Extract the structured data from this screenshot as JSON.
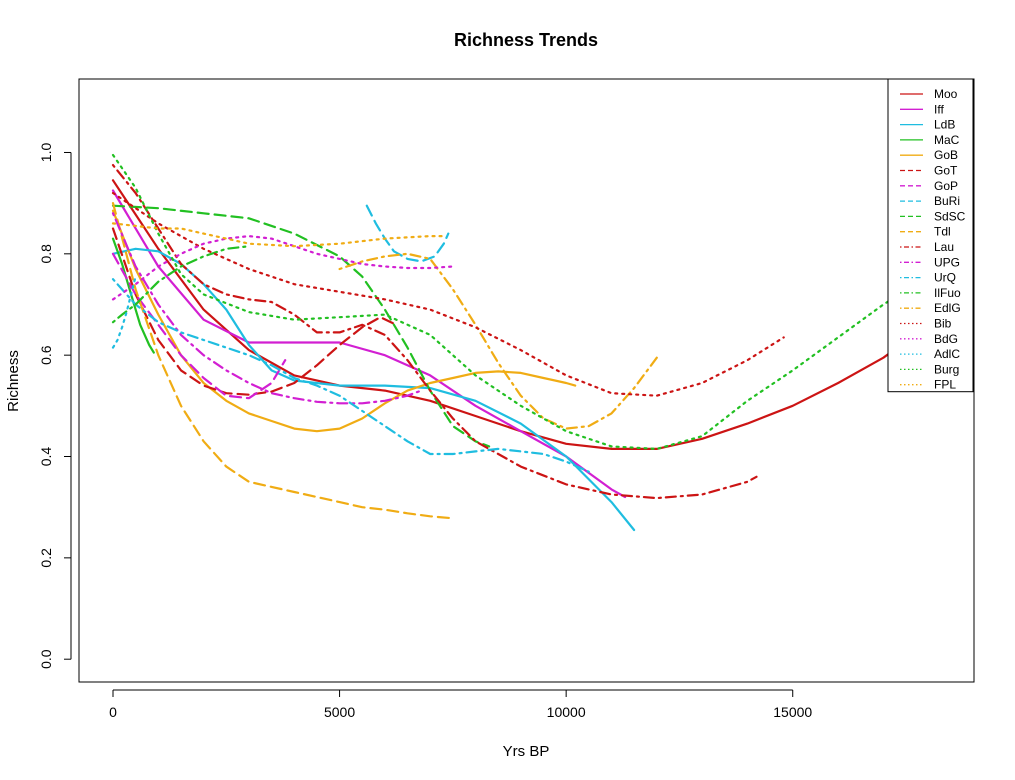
{
  "chart_data": {
    "type": "line",
    "title": "Richness Trends",
    "xlabel": "Yrs BP",
    "ylabel": "Richness",
    "xlim": [
      -750,
      19000
    ],
    "ylim": [
      -0.045,
      1.145
    ],
    "xticks": [
      0,
      5000,
      10000,
      15000
    ],
    "yticks": [
      0.0,
      0.2,
      0.4,
      0.6,
      0.8,
      1.0
    ],
    "xtick_labels": [
      "0",
      "5000",
      "10000",
      "15000"
    ],
    "ytick_labels": [
      "0.0",
      "0.2",
      "0.4",
      "0.6",
      "0.8",
      "1.0"
    ],
    "grid": false,
    "legend_position": "top-right",
    "series": [
      {
        "name": "Moo",
        "color": "#cc1414",
        "dash": "solid",
        "x": [
          0,
          1000,
          2000,
          3000,
          4000,
          5000,
          6000,
          7000,
          8000,
          9000,
          10000,
          11000,
          12000,
          13000,
          14000,
          15000,
          16000,
          17000,
          18000
        ],
        "y": [
          0.945,
          0.81,
          0.69,
          0.61,
          0.56,
          0.54,
          0.53,
          0.51,
          0.48,
          0.45,
          0.425,
          0.415,
          0.415,
          0.435,
          0.465,
          0.5,
          0.545,
          0.595,
          0.66
        ]
      },
      {
        "name": "Iff",
        "color": "#d21fd2",
        "dash": "solid",
        "x": [
          0,
          1000,
          2000,
          3000,
          4000,
          5000,
          6000,
          7000,
          8000,
          9000,
          10000,
          11000,
          11300
        ],
        "y": [
          0.925,
          0.775,
          0.67,
          0.625,
          0.625,
          0.625,
          0.6,
          0.56,
          0.5,
          0.45,
          0.4,
          0.335,
          0.32
        ]
      },
      {
        "name": "LdB",
        "color": "#1fbde0",
        "dash": "solid",
        "x": [
          0,
          500,
          1000,
          1500,
          2000,
          2500,
          3000,
          3500,
          4000,
          5000,
          6000,
          7000,
          8000,
          9000,
          10000,
          11000,
          11500
        ],
        "y": [
          0.8,
          0.81,
          0.805,
          0.78,
          0.74,
          0.69,
          0.62,
          0.57,
          0.55,
          0.54,
          0.54,
          0.535,
          0.51,
          0.465,
          0.4,
          0.31,
          0.255
        ]
      },
      {
        "name": "MaC",
        "color": "#22c022",
        "dash": "solid",
        "x": [
          0,
          200,
          400,
          600,
          800,
          900
        ],
        "y": [
          0.83,
          0.78,
          0.72,
          0.66,
          0.62,
          0.605
        ]
      },
      {
        "name": "GoB",
        "color": "#f0ac14",
        "dash": "solid",
        "x": [
          0,
          500,
          1000,
          1500,
          2000,
          2500,
          3000,
          3500,
          4000,
          4500,
          5000,
          5500,
          6000,
          6500,
          7000,
          7500,
          8000,
          8500,
          9000,
          9500,
          10000,
          10200
        ],
        "y": [
          0.885,
          0.77,
          0.68,
          0.6,
          0.545,
          0.51,
          0.485,
          0.47,
          0.455,
          0.45,
          0.455,
          0.475,
          0.505,
          0.53,
          0.545,
          0.555,
          0.565,
          0.568,
          0.565,
          0.555,
          0.545,
          0.54
        ]
      },
      {
        "name": "GoT",
        "color": "#cc1414",
        "dash": "dashed",
        "x": [
          0,
          500,
          1000,
          1500,
          2000,
          2500,
          3000,
          3500,
          4000,
          4500,
          5000,
          5500,
          5900,
          6200
        ],
        "y": [
          0.85,
          0.72,
          0.63,
          0.57,
          0.54,
          0.525,
          0.522,
          0.528,
          0.545,
          0.58,
          0.62,
          0.655,
          0.675,
          0.662
        ]
      },
      {
        "name": "GoP",
        "color": "#d21fd2",
        "dash": "dashed",
        "x": [
          0,
          500,
          1000,
          1500,
          2000,
          2500,
          3000,
          3500,
          3800
        ],
        "y": [
          0.8,
          0.72,
          0.66,
          0.6,
          0.555,
          0.52,
          0.515,
          0.545,
          0.59
        ]
      },
      {
        "name": "BuRi",
        "color": "#1fbde0",
        "dash": "dashed",
        "x": [
          5600,
          5800,
          6000,
          6200,
          6500,
          6800,
          7100,
          7300,
          7400
        ],
        "y": [
          0.895,
          0.86,
          0.83,
          0.805,
          0.79,
          0.785,
          0.795,
          0.82,
          0.84
        ]
      },
      {
        "name": "SdSC",
        "color": "#22c022",
        "dash": "dashed",
        "x": [
          0,
          1000,
          2000,
          3000,
          4000,
          5000,
          5500,
          6000,
          6500,
          7000,
          7500,
          8000,
          8300
        ],
        "y": [
          0.895,
          0.89,
          0.88,
          0.87,
          0.84,
          0.795,
          0.755,
          0.69,
          0.615,
          0.53,
          0.46,
          0.43,
          0.42
        ]
      },
      {
        "name": "Tdl",
        "color": "#f0ac14",
        "dash": "dashed",
        "x": [
          0,
          500,
          1000,
          1500,
          2000,
          2500,
          3000,
          3500,
          4000,
          4500,
          5000,
          5500,
          6000,
          6500,
          7000,
          7500
        ],
        "y": [
          0.9,
          0.73,
          0.6,
          0.5,
          0.43,
          0.38,
          0.35,
          0.34,
          0.33,
          0.32,
          0.31,
          0.3,
          0.295,
          0.288,
          0.282,
          0.278
        ]
      },
      {
        "name": "Lau",
        "color": "#cc1414",
        "dash": "dashdot",
        "x": [
          0,
          500,
          1000,
          1500,
          2000,
          2500,
          3000,
          3500,
          4000,
          4500,
          5000,
          5500,
          6000,
          6500,
          7000,
          7500,
          8000,
          9000,
          10000,
          11000,
          12000,
          13000,
          14000,
          14200
        ],
        "y": [
          0.975,
          0.92,
          0.85,
          0.78,
          0.74,
          0.72,
          0.71,
          0.705,
          0.68,
          0.645,
          0.645,
          0.66,
          0.64,
          0.59,
          0.53,
          0.475,
          0.43,
          0.38,
          0.345,
          0.325,
          0.318,
          0.325,
          0.35,
          0.36
        ]
      },
      {
        "name": "UPG",
        "color": "#d21fd2",
        "dash": "dashdot",
        "x": [
          0,
          500,
          1000,
          1500,
          2000,
          2500,
          3000,
          3500,
          4000,
          4500,
          5000,
          5500,
          6000,
          6500,
          6800
        ],
        "y": [
          0.88,
          0.775,
          0.7,
          0.64,
          0.6,
          0.57,
          0.545,
          0.525,
          0.515,
          0.508,
          0.505,
          0.505,
          0.51,
          0.52,
          0.53
        ]
      },
      {
        "name": "UrQ",
        "color": "#1fbde0",
        "dash": "dashdot",
        "x": [
          0,
          500,
          1000,
          1500,
          2000,
          2500,
          3000,
          3500,
          4000,
          4500,
          5000,
          5500,
          6000,
          6500,
          7000,
          7500,
          8000,
          8500,
          9000,
          9500,
          10000,
          10500
        ],
        "y": [
          0.75,
          0.7,
          0.665,
          0.645,
          0.63,
          0.615,
          0.6,
          0.58,
          0.555,
          0.54,
          0.52,
          0.49,
          0.46,
          0.43,
          0.405,
          0.405,
          0.41,
          0.415,
          0.41,
          0.405,
          0.39,
          0.37
        ]
      },
      {
        "name": "IlFuo",
        "color": "#22c022",
        "dash": "dashdot",
        "x": [
          0,
          200,
          500,
          1000,
          1500,
          2000,
          2500,
          3000
        ],
        "y": [
          0.665,
          0.68,
          0.7,
          0.745,
          0.775,
          0.795,
          0.81,
          0.815
        ]
      },
      {
        "name": "EdlG",
        "color": "#f0ac14",
        "dash": "dashdot",
        "x": [
          5000,
          5500,
          6000,
          6500,
          7000,
          7500,
          8000,
          8500,
          9000,
          9500,
          10000,
          10500,
          11000,
          11500,
          12000
        ],
        "y": [
          0.77,
          0.785,
          0.795,
          0.8,
          0.79,
          0.73,
          0.66,
          0.585,
          0.52,
          0.475,
          0.455,
          0.46,
          0.485,
          0.535,
          0.595
        ]
      },
      {
        "name": "Bib",
        "color": "#cc1414",
        "dash": "dotted",
        "x": [
          0,
          1000,
          2000,
          3000,
          4000,
          5000,
          6000,
          7000,
          8000,
          9000,
          10000,
          11000,
          12000,
          13000,
          14000,
          14800
        ],
        "y": [
          0.92,
          0.86,
          0.81,
          0.77,
          0.74,
          0.725,
          0.71,
          0.69,
          0.655,
          0.61,
          0.56,
          0.525,
          0.52,
          0.545,
          0.59,
          0.635
        ]
      },
      {
        "name": "BdG",
        "color": "#d21fd2",
        "dash": "dotted",
        "x": [
          0,
          500,
          1000,
          1500,
          2000,
          2500,
          3000,
          3500,
          4000,
          4500,
          5000,
          5500,
          6000,
          6500,
          7000,
          7500
        ],
        "y": [
          0.71,
          0.74,
          0.775,
          0.8,
          0.82,
          0.83,
          0.835,
          0.83,
          0.815,
          0.8,
          0.79,
          0.78,
          0.775,
          0.772,
          0.772,
          0.775
        ]
      },
      {
        "name": "AdlC",
        "color": "#1fbde0",
        "dash": "dotted",
        "x": [
          0,
          100,
          200,
          300,
          400,
          500
        ],
        "y": [
          0.615,
          0.63,
          0.655,
          0.685,
          0.72,
          0.755
        ]
      },
      {
        "name": "Burg",
        "color": "#22c022",
        "dash": "dotted",
        "x": [
          0,
          500,
          1000,
          1500,
          2000,
          3000,
          4000,
          5000,
          6000,
          7000,
          8000,
          9000,
          10000,
          11000,
          12000,
          13000,
          14000,
          15000,
          16000,
          17000,
          17800
        ],
        "y": [
          0.995,
          0.93,
          0.84,
          0.76,
          0.72,
          0.685,
          0.67,
          0.675,
          0.68,
          0.64,
          0.56,
          0.5,
          0.45,
          0.42,
          0.415,
          0.44,
          0.51,
          0.57,
          0.635,
          0.7,
          0.745
        ]
      },
      {
        "name": "FPL",
        "color": "#f0ac14",
        "dash": "dotted",
        "x": [
          0,
          500,
          1000,
          1500,
          2000,
          2500,
          3000,
          4000,
          5000,
          6000,
          7000,
          7300
        ],
        "y": [
          0.86,
          0.855,
          0.85,
          0.85,
          0.84,
          0.83,
          0.82,
          0.815,
          0.82,
          0.83,
          0.835,
          0.835
        ]
      }
    ]
  }
}
